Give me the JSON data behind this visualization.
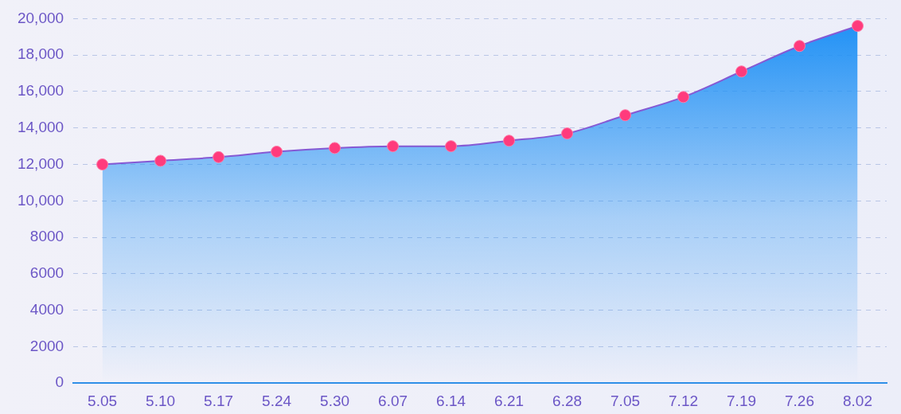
{
  "chart_data": {
    "type": "area",
    "categories": [
      "5.05",
      "5.10",
      "5.17",
      "5.24",
      "5.30",
      "6.07",
      "6.14",
      "6.21",
      "6.28",
      "7.05",
      "7.12",
      "7.19",
      "7.26",
      "8.02"
    ],
    "series": [
      {
        "color": "#1e90f5",
        "values": [
          12000,
          12200,
          12400,
          12700,
          12900,
          13000,
          13000,
          13300,
          13700,
          14700,
          15700,
          17100,
          18500,
          19600
        ]
      }
    ],
    "ylim": [
      0,
      20000
    ],
    "yticks": [
      0,
      2000,
      4000,
      6000,
      8000,
      {
        "value": 10000,
        "label": "10,000"
      },
      {
        "value": 12000,
        "label": "12,000"
      },
      {
        "value": 14000,
        "label": "14,000"
      },
      {
        "value": 16000,
        "label": "16,000"
      },
      {
        "value": 18000,
        "label": "18,000"
      },
      {
        "value": 20000,
        "label": "20,000"
      }
    ],
    "grid": "y",
    "legend": false,
    "marker": "circle",
    "line_style": "solid"
  }
}
